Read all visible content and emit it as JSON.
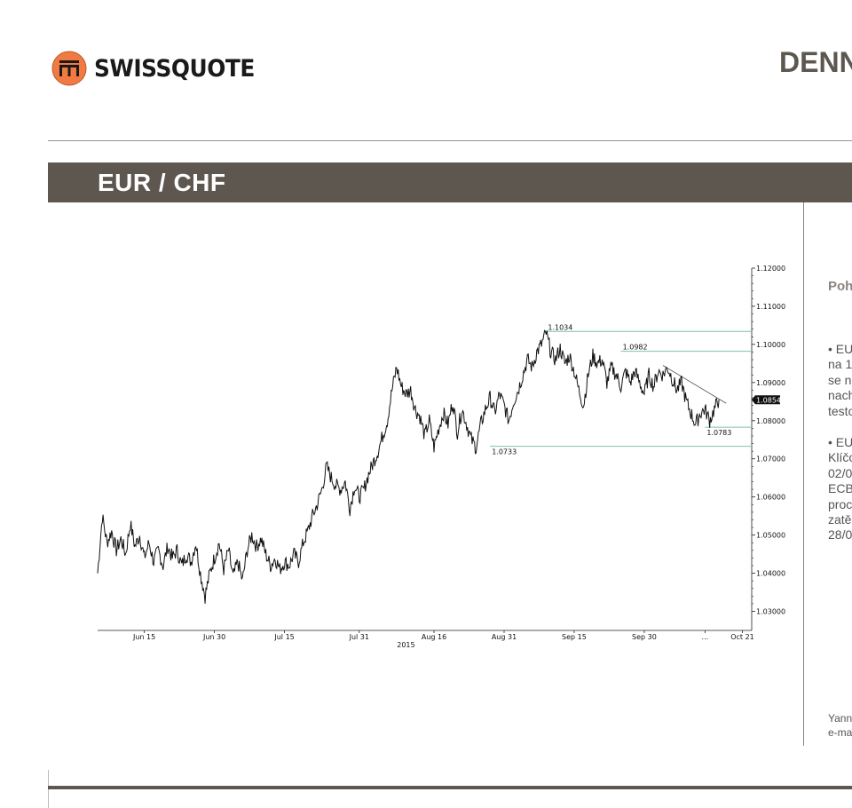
{
  "header": {
    "logo_text": "SWISSQUOTE",
    "title": "DENN"
  },
  "banner": {
    "title": "EUR / CHF"
  },
  "right_column": {
    "heading": "Poh",
    "para1": [
      "• EU",
      "na 1",
      "se n",
      "nach",
      "testo"
    ],
    "para2": [
      "• EU",
      "Klíčo",
      "02/0",
      "ECB",
      "proc",
      "zatě",
      "28/0"
    ],
    "footer": [
      "Yann",
      "e-ma"
    ]
  },
  "colors": {
    "brand_gray": "#5e5750",
    "logo_orange": "#f07a42",
    "level_line": "#7fbfb5"
  },
  "chart_data": {
    "type": "line",
    "title": "",
    "xlabel": "2015",
    "ylabel": "",
    "ylim": [
      1.025,
      1.12
    ],
    "y_ticks": [
      "1.03000",
      "1.04000",
      "1.05000",
      "1.06000",
      "1.07000",
      "1.08000",
      "1.09000",
      "1.10000",
      "1.11000",
      "1.12000"
    ],
    "x_ticks": [
      "Jun 15",
      "Jun 30",
      "Jul 15",
      "Jul 31",
      "Aug 16",
      "Aug 31",
      "Sep 15",
      "Sep 30",
      "...",
      "Oct 21"
    ],
    "x_tick_pos": [
      10,
      25,
      40,
      56,
      72,
      87,
      102,
      117,
      130,
      138
    ],
    "x_range": [
      0,
      140
    ],
    "last_value": "1.08548",
    "series": [
      {
        "values": [
          [
            0,
            1.04
          ],
          [
            1,
            1.055
          ],
          [
            2,
            1.048
          ],
          [
            3,
            1.051
          ],
          [
            4,
            1.046
          ],
          [
            5,
            1.049
          ],
          [
            6,
            1.045
          ],
          [
            7,
            1.053
          ],
          [
            8,
            1.047
          ],
          [
            9,
            1.05
          ],
          [
            10,
            1.044
          ],
          [
            11,
            1.048
          ],
          [
            12,
            1.043
          ],
          [
            13,
            1.046
          ],
          [
            14,
            1.042
          ],
          [
            15,
            1.047
          ],
          [
            16,
            1.044
          ],
          [
            17,
            1.046
          ],
          [
            18,
            1.042
          ],
          [
            19,
            1.045
          ],
          [
            20,
            1.043
          ],
          [
            21,
            1.048
          ],
          [
            22,
            1.04
          ],
          [
            23,
            1.034
          ],
          [
            24,
            1.04
          ],
          [
            25,
            1.044
          ],
          [
            26,
            1.048
          ],
          [
            27,
            1.041
          ],
          [
            28,
            1.046
          ],
          [
            29,
            1.039
          ],
          [
            30,
            1.043
          ],
          [
            31,
            1.038
          ],
          [
            32,
            1.046
          ],
          [
            33,
            1.05
          ],
          [
            34,
            1.047
          ],
          [
            35,
            1.049
          ],
          [
            36,
            1.045
          ],
          [
            37,
            1.042
          ],
          [
            38,
            1.044
          ],
          [
            39,
            1.041
          ],
          [
            40,
            1.043
          ],
          [
            41,
            1.042
          ],
          [
            42,
            1.045
          ],
          [
            43,
            1.043
          ],
          [
            44,
            1.048
          ],
          [
            45,
            1.051
          ],
          [
            46,
            1.055
          ],
          [
            47,
            1.058
          ],
          [
            48,
            1.062
          ],
          [
            49,
            1.068
          ],
          [
            50,
            1.065
          ],
          [
            51,
            1.063
          ],
          [
            52,
            1.062
          ],
          [
            53,
            1.064
          ],
          [
            54,
            1.057
          ],
          [
            55,
            1.063
          ],
          [
            56,
            1.06
          ],
          [
            57,
            1.062
          ],
          [
            58,
            1.066
          ],
          [
            59,
            1.069
          ],
          [
            60,
            1.072
          ],
          [
            61,
            1.076
          ],
          [
            62,
            1.08
          ],
          [
            63,
            1.088
          ],
          [
            64,
            1.094
          ],
          [
            65,
            1.089
          ],
          [
            66,
            1.087
          ],
          [
            67,
            1.088
          ],
          [
            68,
            1.083
          ],
          [
            69,
            1.081
          ],
          [
            70,
            1.076
          ],
          [
            71,
            1.08
          ],
          [
            72,
            1.073
          ],
          [
            73,
            1.078
          ],
          [
            74,
            1.082
          ],
          [
            75,
            1.079
          ],
          [
            76,
            1.085
          ],
          [
            77,
            1.077
          ],
          [
            78,
            1.083
          ],
          [
            79,
            1.079
          ],
          [
            80,
            1.075
          ],
          [
            81,
            1.073
          ],
          [
            82,
            1.079
          ],
          [
            83,
            1.083
          ],
          [
            84,
            1.086
          ],
          [
            85,
            1.082
          ],
          [
            86,
            1.087
          ],
          [
            87,
            1.084
          ],
          [
            88,
            1.08
          ],
          [
            89,
            1.085
          ],
          [
            90,
            1.088
          ],
          [
            91,
            1.092
          ],
          [
            92,
            1.096
          ],
          [
            93,
            1.094
          ],
          [
            94,
            1.098
          ],
          [
            95,
            1.1
          ],
          [
            96,
            1.103
          ],
          [
            97,
            1.098
          ],
          [
            98,
            1.096
          ],
          [
            99,
            1.099
          ],
          [
            100,
            1.095
          ],
          [
            101,
            1.097
          ],
          [
            102,
            1.093
          ],
          [
            103,
            1.088
          ],
          [
            104,
            1.084
          ],
          [
            105,
            1.092
          ],
          [
            106,
            1.097
          ],
          [
            107,
            1.095
          ],
          [
            108,
            1.096
          ],
          [
            109,
            1.09
          ],
          [
            110,
            1.094
          ],
          [
            111,
            1.092
          ],
          [
            112,
            1.089
          ],
          [
            113,
            1.093
          ],
          [
            114,
            1.09
          ],
          [
            115,
            1.093
          ],
          [
            116,
            1.09
          ],
          [
            117,
            1.087
          ],
          [
            118,
            1.092
          ],
          [
            119,
            1.089
          ],
          [
            120,
            1.093
          ],
          [
            121,
            1.092
          ],
          [
            122,
            1.094
          ],
          [
            123,
            1.091
          ],
          [
            124,
            1.088
          ],
          [
            125,
            1.09
          ],
          [
            126,
            1.085
          ],
          [
            127,
            1.082
          ],
          [
            128,
            1.079
          ],
          [
            129,
            1.082
          ],
          [
            130,
            1.083
          ],
          [
            131,
            1.08
          ],
          [
            132,
            1.083
          ],
          [
            133,
            1.0855
          ]
        ]
      }
    ],
    "annotations": {
      "levels": [
        {
          "label": "1.1034",
          "value": 1.1034,
          "x_start": 96,
          "x_end": 140
        },
        {
          "label": "1.0982",
          "value": 1.0982,
          "x_start": 112,
          "x_end": 140
        },
        {
          "label": "1.0783",
          "value": 1.0783,
          "x_start": 130,
          "x_end": 140
        },
        {
          "label": "1.0733",
          "value": 1.0733,
          "x_start": 84,
          "x_end": 140
        }
      ],
      "trendline": {
        "from": [
          121,
          1.0945
        ],
        "to": [
          133,
          1.0855
        ]
      }
    }
  }
}
